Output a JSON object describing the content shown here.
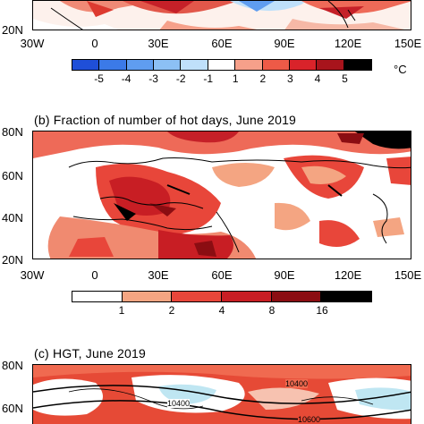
{
  "panel_a": {
    "y_labels": [
      "20N"
    ],
    "x_labels": [
      "30W",
      "0",
      "30E",
      "60E",
      "90E",
      "120E",
      "150E"
    ],
    "colorbar": {
      "ticks": [
        "-5",
        "-4",
        "-3",
        "-2",
        "-1",
        "1",
        "2",
        "3",
        "4",
        "5"
      ],
      "unit": "°C",
      "colors": [
        "#1f4fd8",
        "#3b7ae8",
        "#5f9df0",
        "#8cc0f5",
        "#bfe0fa",
        "#ffffff",
        "#f6a08a",
        "#ee5a47",
        "#d9232a",
        "#a8141c",
        "#000000"
      ]
    }
  },
  "panel_b": {
    "title": "(b)  Fraction of number of hot days, June 2019",
    "y_labels": [
      "80N",
      "60N",
      "40N",
      "20N"
    ],
    "x_labels": [
      "30W",
      "0",
      "30E",
      "60E",
      "90E",
      "120E",
      "150E"
    ],
    "colorbar": {
      "ticks": [
        "1",
        "2",
        "4",
        "8",
        "16"
      ],
      "colors": [
        "#ffffff",
        "#f4a582",
        "#e8463a",
        "#c81e24",
        "#8b0d12",
        "#000000"
      ]
    }
  },
  "panel_c": {
    "title": "(c)  HGT, June 2019",
    "y_labels": [
      "80N",
      "60N"
    ],
    "contour_labels": [
      "10400",
      "10400",
      "10600"
    ]
  }
}
